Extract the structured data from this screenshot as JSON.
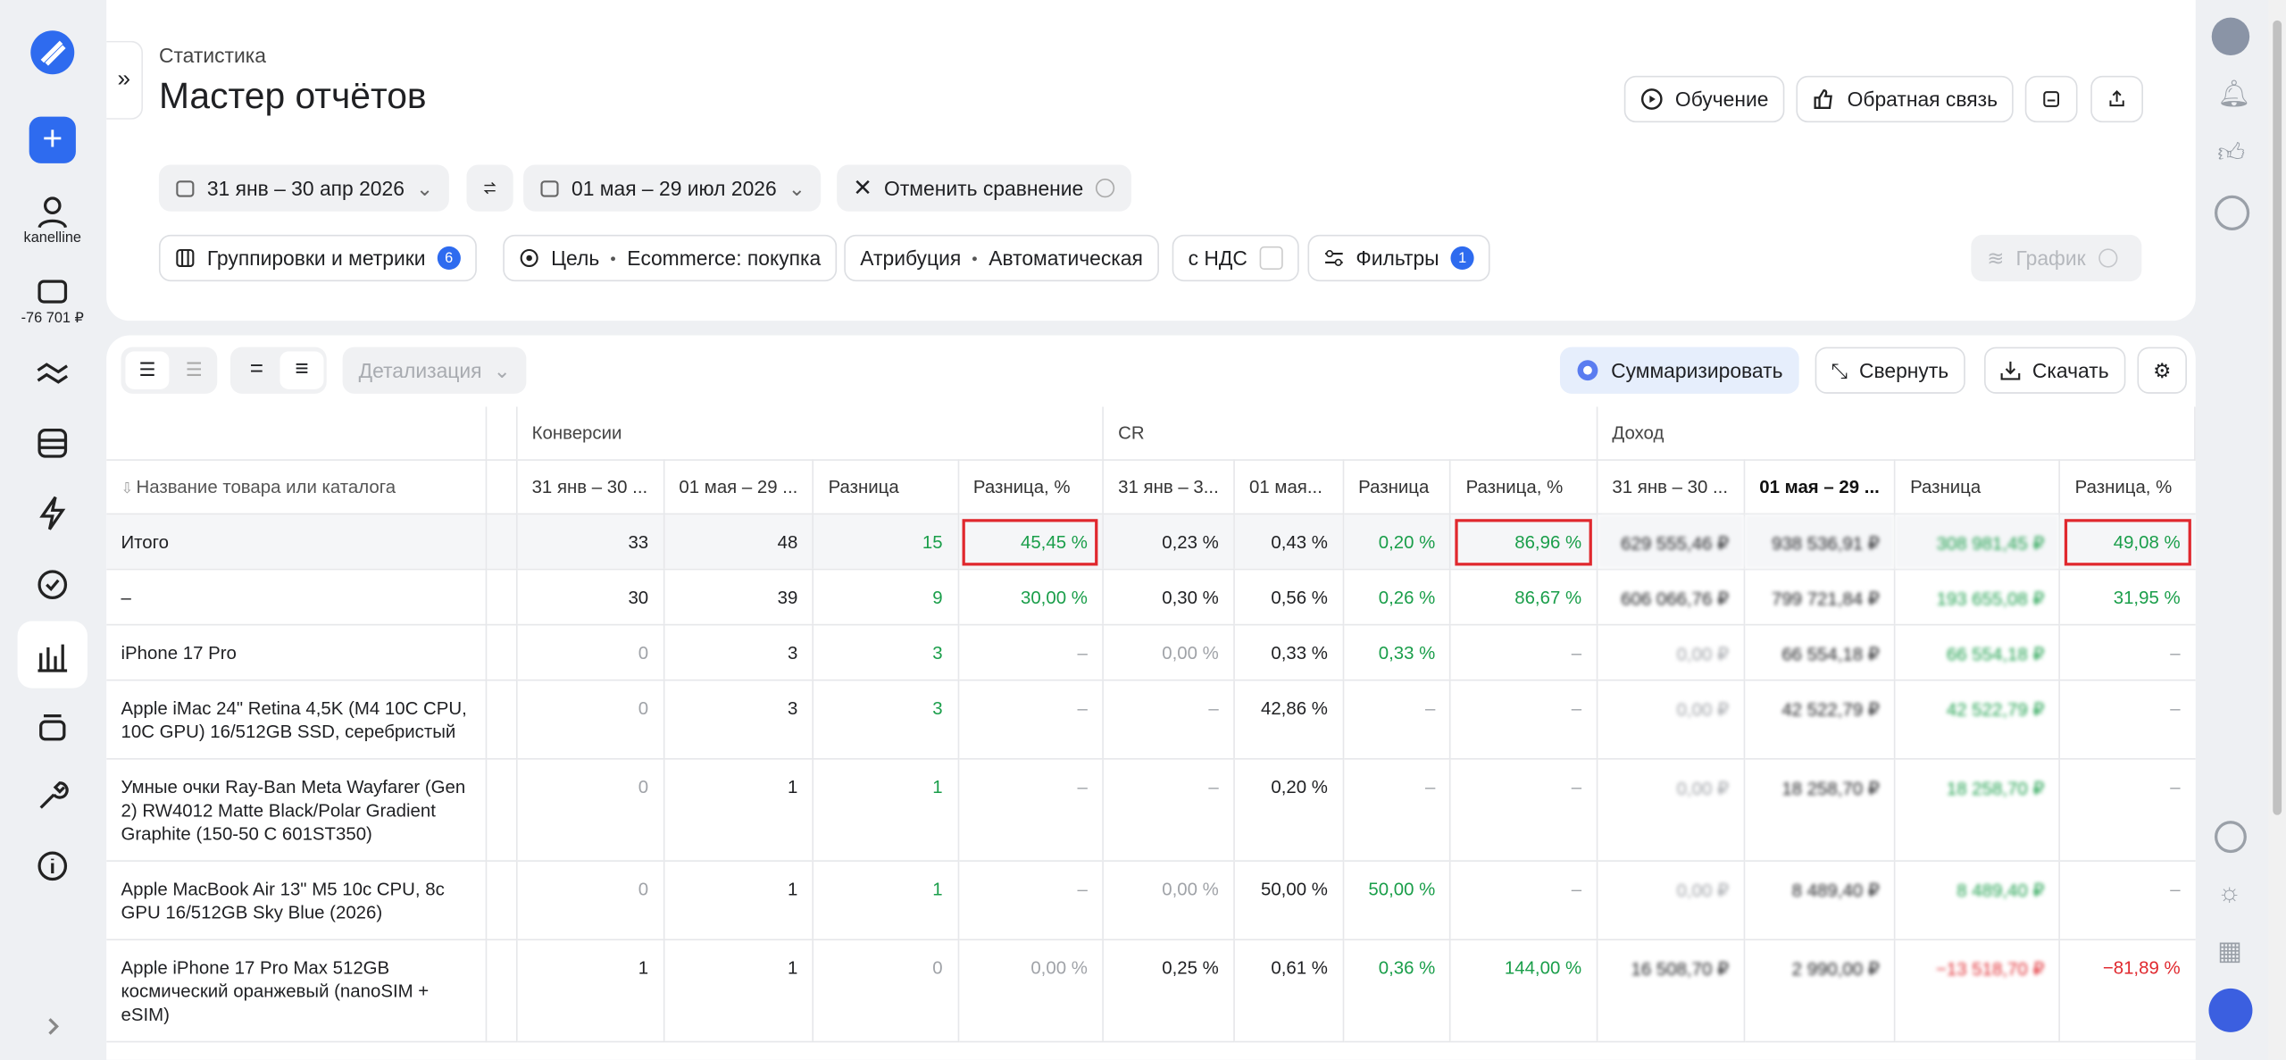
{
  "sidebar": {
    "user": "kanelline",
    "balance": "-76 701 ₽"
  },
  "header": {
    "breadcrumb": "Статистика",
    "title": "Мастер отчётов",
    "buttons": [
      "Обучение",
      "Обратная связь"
    ]
  },
  "period": {
    "first": "31 янв – 30 апр 2026",
    "second": "01 мая – 29 июл 2026",
    "cancel": "Отменить сравнение"
  },
  "settings": {
    "groupings": "Группировки и метрики",
    "groupings_count": "6",
    "goal_label": "Цель",
    "goal": "Ecommerce: покупка",
    "attribution_label": "Атрибуция",
    "attribution": "Автоматическая",
    "vat": "с НДС",
    "filters": "Фильтры",
    "filters_count": "1",
    "chart": "График"
  },
  "toolbar": {
    "detail": "Детализация",
    "summarize": "Суммаризировать",
    "collapse": "Свернуть",
    "download": "Скачать"
  },
  "table": {
    "groups": [
      "Конверсии",
      "CR",
      "Доход"
    ],
    "name_header": "Название товара или каталога",
    "columns": [
      "31 янв – 30 ...",
      "01 мая – 29 ...",
      "Разница",
      "Разница, %",
      "31 янв – 3...",
      "01 мая...",
      "Разница",
      "Разница, %",
      "31 янв – 30 ...",
      "01 мая – 29 ...",
      "Разница",
      "Разница, %"
    ],
    "rows": [
      {
        "name": "Итого",
        "cells": [
          "33",
          "48",
          "15",
          "45,45 %",
          "0,23 %",
          "0,43 %",
          "0,20 %",
          "86,96 %",
          "629 555,46 ₽",
          "938 536,91 ₽",
          "308 981,45 ₽",
          "49,08 %"
        ]
      },
      {
        "name": "–",
        "cells": [
          "30",
          "39",
          "9",
          "30,00 %",
          "0,30 %",
          "0,56 %",
          "0,26 %",
          "86,67 %",
          "606 066,76 ₽",
          "799 721,84 ₽",
          "193 655,08 ₽",
          "31,95 %"
        ]
      },
      {
        "name": "iPhone 17 Pro",
        "cells": [
          "0",
          "3",
          "3",
          "–",
          "0,00 %",
          "0,33 %",
          "0,33 %",
          "–",
          "0,00 ₽",
          "66 554,18 ₽",
          "66 554,18 ₽",
          "–"
        ]
      },
      {
        "name": "Apple iMac 24\" Retina 4,5K (M4 10C CPU, 10C GPU) 16/512GB SSD, серебристый",
        "cells": [
          "0",
          "3",
          "3",
          "–",
          "–",
          "42,86 %",
          "–",
          "–",
          "0,00 ₽",
          "42 522,79 ₽",
          "42 522,79 ₽",
          "–"
        ]
      },
      {
        "name": "Умные очки Ray-Ban Meta Wayfarer (Gen 2) RW4012 Matte Black/Polar Gradient Graphite (150-50 C 601ST350)",
        "cells": [
          "0",
          "1",
          "1",
          "–",
          "–",
          "0,20 %",
          "–",
          "–",
          "0,00 ₽",
          "18 258,70 ₽",
          "18 258,70 ₽",
          "–"
        ]
      },
      {
        "name": "Apple MacBook Air 13\" M5 10c CPU, 8c GPU 16/512GB Sky Blue (2026)",
        "cells": [
          "0",
          "1",
          "1",
          "–",
          "0,00 %",
          "50,00 %",
          "50,00 %",
          "–",
          "0,00 ₽",
          "8 489,40 ₽",
          "8 489,40 ₽",
          "–"
        ]
      },
      {
        "name": "Apple iPhone 17 Pro Max 512GB космический оранжевый (nanoSIM + eSIM)",
        "cells": [
          "1",
          "1",
          "0",
          "0,00 %",
          "0,25 %",
          "0,61 %",
          "0,36 %",
          "144,00 %",
          "16 508,70 ₽",
          "2 990,00 ₽",
          "−13 518,70 ₽",
          "−81,89 %"
        ]
      }
    ]
  }
}
